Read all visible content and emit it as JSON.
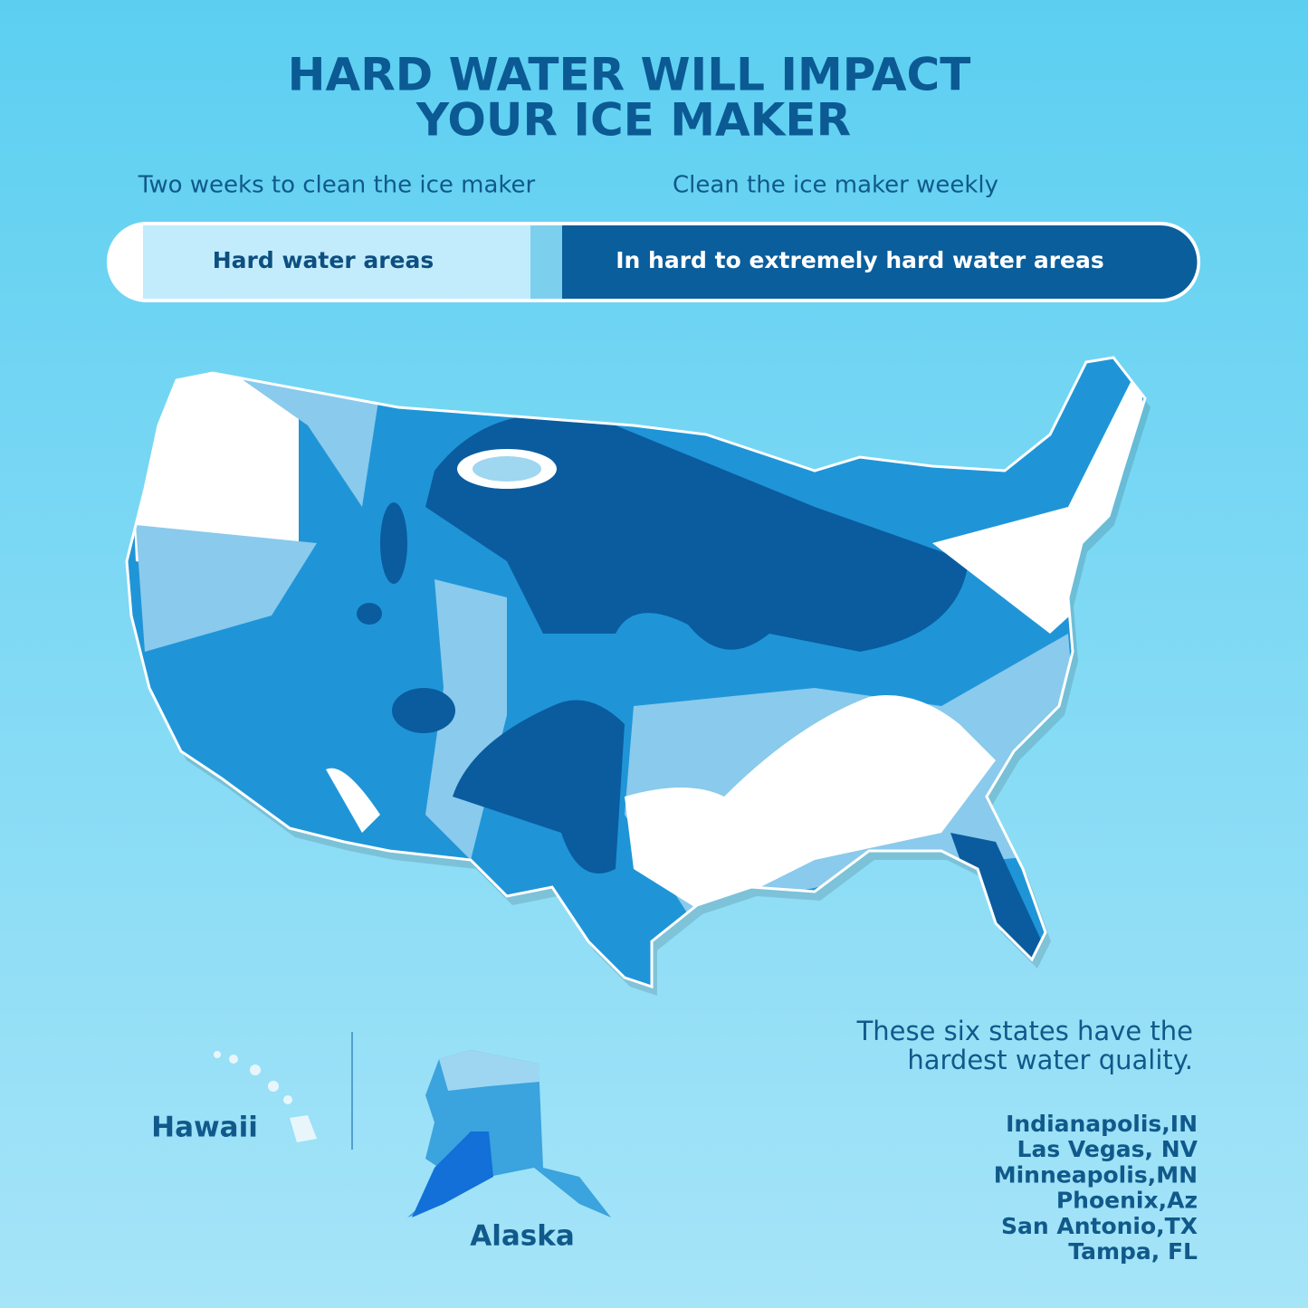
{
  "header": {
    "title": [
      "HARD WATER WILL IMPACT",
      "YOUR ICE MAKER"
    ]
  },
  "schedule": {
    "left": "Two weeks to clean the ice maker",
    "right": "Clean the ice maker weekly"
  },
  "legend": {
    "light": "Hard water areas",
    "dark": "In hard to extremely hard water areas"
  },
  "map": {
    "insets": [
      "Hawaii",
      "Alaska"
    ]
  },
  "note": [
    "These six states have the",
    "hardest water quality."
  ],
  "cities": [
    "Indianapolis,IN",
    "Las Vegas, NV",
    "Minneapolis,MN",
    "Phoenix,Az",
    "San Antonio,TX",
    "Tampa, FL"
  ]
}
